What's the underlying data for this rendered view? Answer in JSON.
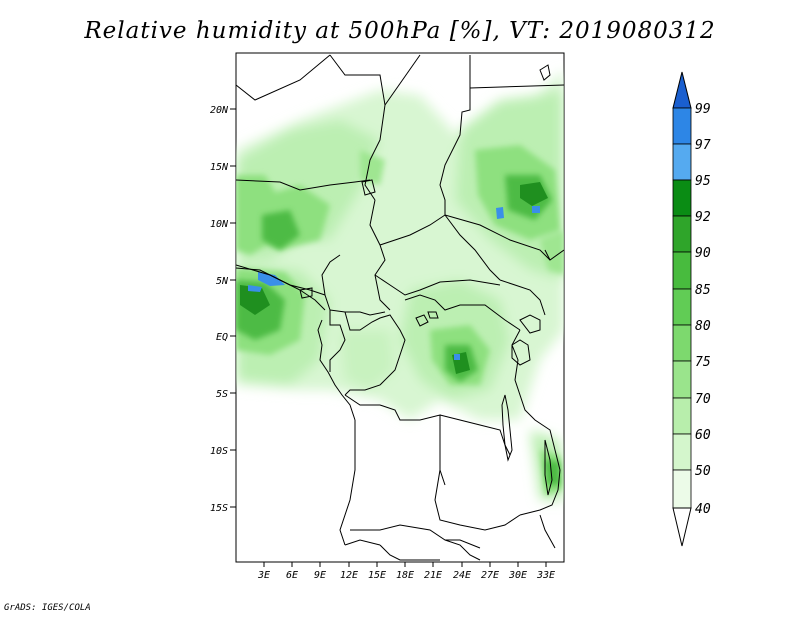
{
  "title": "Relative humidity at 500hPa [%], VT: 2019080312",
  "footer": "GrADS: IGES/COLA",
  "map": {
    "lat_ticks": [
      "20N",
      "15N",
      "10N",
      "5N",
      "EQ",
      "5S",
      "10S",
      "15S"
    ],
    "lon_ticks": [
      "3E",
      "6E",
      "9E",
      "12E",
      "15E",
      "18E",
      "21E",
      "24E",
      "27E",
      "30E",
      "33E"
    ]
  },
  "colorbar": {
    "levels": [
      "99",
      "97",
      "95",
      "92",
      "90",
      "85",
      "80",
      "75",
      "70",
      "60",
      "50",
      "40"
    ],
    "colors": [
      "#1a5fcf",
      "#2d86e6",
      "#55aaf0",
      "#0a8c14",
      "#2fa52a",
      "#48bb3e",
      "#61cc55",
      "#7dd96e",
      "#9ae48c",
      "#b8eeac",
      "#d4f6cc",
      "#ecfbe8"
    ]
  }
}
